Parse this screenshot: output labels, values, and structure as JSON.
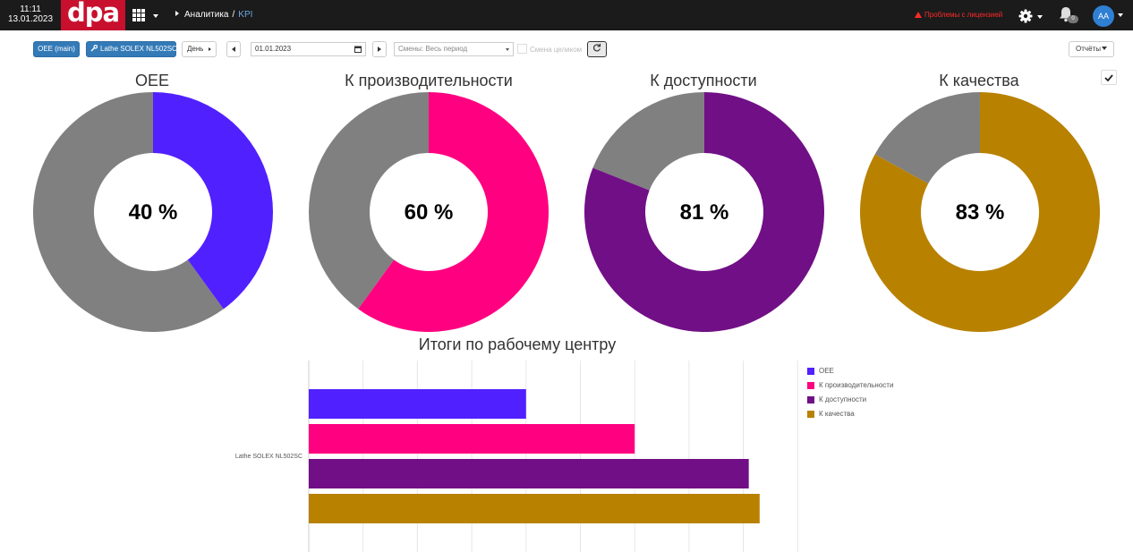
{
  "topbar": {
    "time": "11:11",
    "date": "13.01.2023",
    "logo_text": "dpa",
    "breadcrumb": {
      "section": "Аналитика",
      "separator": "/",
      "current": "KPI"
    },
    "license_warning": "Проблемы с лицензией",
    "notifications_count": "0",
    "avatar_initials": "AA"
  },
  "toolbar": {
    "oee_button": "OEE (main)",
    "machine_button": "Lathe SOLEX NL502SC",
    "period_select": "День",
    "date_value": "01.01.2023",
    "shift_select": "Смены: Весь период",
    "whole_shift_label": "Смена целиком",
    "reports_button": "Отчёты"
  },
  "kpis": [
    {
      "title": "OEE",
      "value_text": "40 %",
      "value": 40,
      "color": "#5120ff"
    },
    {
      "title": "К производительности",
      "value_text": "60 %",
      "value": 60,
      "color": "#ff0080"
    },
    {
      "title": "К доступности",
      "value_text": "81 %",
      "value": 81,
      "color": "#710f86"
    },
    {
      "title": "К качества",
      "value_text": "83 %",
      "value": 83,
      "color": "#b88100"
    }
  ],
  "remainder_color": "#808080",
  "chart_data": {
    "type": "bar",
    "orientation": "horizontal",
    "title": "Итоги по рабочему центру",
    "categories": [
      "Lathe SOLEX NL502SC"
    ],
    "series": [
      {
        "name": "OEE",
        "values": [
          40
        ],
        "color": "#5120ff"
      },
      {
        "name": "К производительности",
        "values": [
          60
        ],
        "color": "#ff0080"
      },
      {
        "name": "К доступности",
        "values": [
          81
        ],
        "color": "#710f86"
      },
      {
        "name": "К качества",
        "values": [
          83
        ],
        "color": "#b88100"
      }
    ],
    "xlim": [
      0,
      90
    ],
    "grid": true,
    "legend": "right"
  }
}
